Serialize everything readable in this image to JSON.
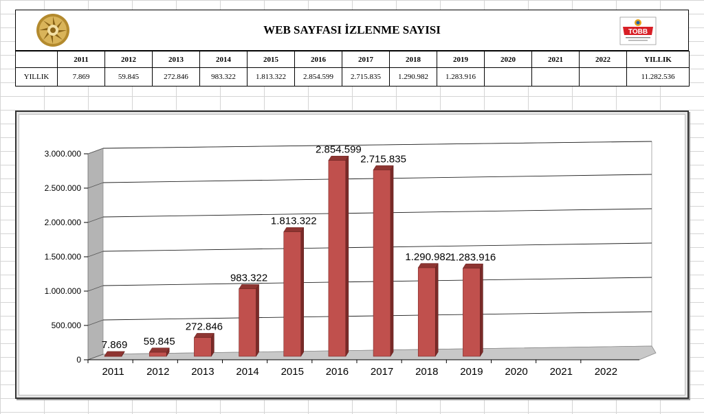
{
  "header": {
    "title": "WEB SAYFASI İZLENME SAYISI",
    "right_logo_text": "TOBB"
  },
  "table": {
    "years": [
      "2011",
      "2012",
      "2013",
      "2014",
      "2015",
      "2016",
      "2017",
      "2018",
      "2019",
      "2020",
      "2021",
      "2022"
    ],
    "total_header": "YILLIK",
    "row_label": "YILLIK",
    "values": [
      "7.869",
      "59.845",
      "272.846",
      "983.322",
      "1.813.322",
      "2.854.599",
      "2.715.835",
      "1.290.982",
      "1.283.916",
      "",
      "",
      ""
    ],
    "total": "11.282.536"
  },
  "chart_data": {
    "type": "bar",
    "categories": [
      "2011",
      "2012",
      "2013",
      "2014",
      "2015",
      "2016",
      "2017",
      "2018",
      "2019",
      "2020",
      "2021",
      "2022"
    ],
    "values": [
      7869,
      59845,
      272846,
      983322,
      1813322,
      2854599,
      2715835,
      1290982,
      1283916,
      null,
      null,
      null
    ],
    "data_labels": [
      "7.869",
      "59.845",
      "272.846",
      "983.322",
      "1.813.322",
      "2.854.599",
      "2.715.835",
      "1.290.982",
      "1.283.916",
      "",
      "",
      ""
    ],
    "yticks": [
      0,
      500000,
      1000000,
      1500000,
      2000000,
      2500000,
      3000000
    ],
    "ytick_labels": [
      "0",
      "500.000",
      "1.000.000",
      "1.500.000",
      "2.000.000",
      "2.500.000",
      "3.000.000"
    ],
    "ylim": [
      0,
      3000000
    ],
    "grid": true,
    "legend": "none",
    "three_d": true,
    "bar_color": "#c0504d"
  }
}
